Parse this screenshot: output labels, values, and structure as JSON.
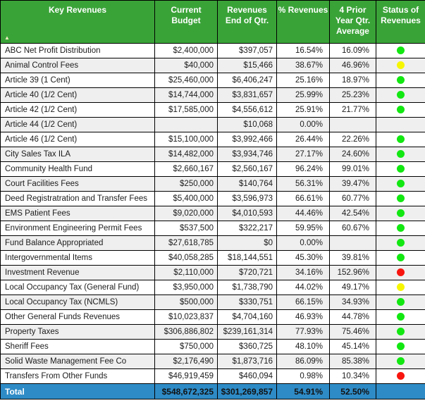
{
  "colors": {
    "header_bg": "#3AA338",
    "header_text": "#FFFFFF",
    "row_alt_bg": "#EFEFEF",
    "total_bg": "#2E8BC6",
    "grid_border": "#000000",
    "status_green": "#12E712",
    "status_yellow": "#F6F600",
    "status_red": "#F8150E"
  },
  "chart_data": {
    "type": "table",
    "sort_indicator": "ascending-on-key-revenues",
    "columns": [
      {
        "label": "Key Revenues",
        "align": "left"
      },
      {
        "label": "Current Budget",
        "align": "right"
      },
      {
        "label": "Revenues End of Qtr.",
        "align": "right"
      },
      {
        "label": "% Revenues",
        "align": "right"
      },
      {
        "label": "4 Prior Year Qtr. Average",
        "align": "right"
      },
      {
        "label": "Status of Revenues",
        "align": "center"
      }
    ],
    "rows": [
      {
        "name": "ABC Net Profit Distribution",
        "current_budget": "$2,400,000",
        "revenues_end_of_qtr": "$397,057",
        "pct_revenues": "16.54%",
        "prior_avg": "16.09%",
        "status": "green"
      },
      {
        "name": "Animal Control Fees",
        "current_budget": "$40,000",
        "revenues_end_of_qtr": "$15,466",
        "pct_revenues": "38.67%",
        "prior_avg": "46.96%",
        "status": "yellow"
      },
      {
        "name": "Article 39 (1 Cent)",
        "current_budget": "$25,460,000",
        "revenues_end_of_qtr": "$6,406,247",
        "pct_revenues": "25.16%",
        "prior_avg": "18.97%",
        "status": "green"
      },
      {
        "name": "Article 40 (1/2 Cent)",
        "current_budget": "$14,744,000",
        "revenues_end_of_qtr": "$3,831,657",
        "pct_revenues": "25.99%",
        "prior_avg": "25.23%",
        "status": "green"
      },
      {
        "name": "Article 42 (1/2 Cent)",
        "current_budget": "$17,585,000",
        "revenues_end_of_qtr": "$4,556,612",
        "pct_revenues": "25.91%",
        "prior_avg": "21.77%",
        "status": "green"
      },
      {
        "name": "Article 44 (1/2 Cent)",
        "current_budget": "",
        "revenues_end_of_qtr": "$10,068",
        "pct_revenues": "0.00%",
        "prior_avg": "",
        "status": "none"
      },
      {
        "name": "Article 46 (1/2 Cent)",
        "current_budget": "$15,100,000",
        "revenues_end_of_qtr": "$3,992,466",
        "pct_revenues": "26.44%",
        "prior_avg": "22.26%",
        "status": "green"
      },
      {
        "name": "City Sales Tax ILA",
        "current_budget": "$14,482,000",
        "revenues_end_of_qtr": "$3,934,746",
        "pct_revenues": "27.17%",
        "prior_avg": "24.60%",
        "status": "green"
      },
      {
        "name": "Community Health Fund",
        "current_budget": "$2,660,167",
        "revenues_end_of_qtr": "$2,560,167",
        "pct_revenues": "96.24%",
        "prior_avg": "99.01%",
        "status": "green"
      },
      {
        "name": "Court Facilities Fees",
        "current_budget": "$250,000",
        "revenues_end_of_qtr": "$140,764",
        "pct_revenues": "56.31%",
        "prior_avg": "39.47%",
        "status": "green"
      },
      {
        "name": "Deed Registratration and Transfer Fees",
        "current_budget": "$5,400,000",
        "revenues_end_of_qtr": "$3,596,973",
        "pct_revenues": "66.61%",
        "prior_avg": "60.77%",
        "status": "green"
      },
      {
        "name": "EMS Patient Fees",
        "current_budget": "$9,020,000",
        "revenues_end_of_qtr": "$4,010,593",
        "pct_revenues": "44.46%",
        "prior_avg": "42.54%",
        "status": "green"
      },
      {
        "name": "Environment Engineering Permit Fees",
        "current_budget": "$537,500",
        "revenues_end_of_qtr": "$322,217",
        "pct_revenues": "59.95%",
        "prior_avg": "60.67%",
        "status": "green"
      },
      {
        "name": "Fund Balance Appropriated",
        "current_budget": "$27,618,785",
        "revenues_end_of_qtr": "$0",
        "pct_revenues": "0.00%",
        "prior_avg": "",
        "status": "green"
      },
      {
        "name": "Intergovernmental Items",
        "current_budget": "$40,058,285",
        "revenues_end_of_qtr": "$18,144,551",
        "pct_revenues": "45.30%",
        "prior_avg": "39.81%",
        "status": "green"
      },
      {
        "name": "Investment Revenue",
        "current_budget": "$2,110,000",
        "revenues_end_of_qtr": "$720,721",
        "pct_revenues": "34.16%",
        "prior_avg": "152.96%",
        "status": "red"
      },
      {
        "name": "Local Occupancy Tax (General Fund)",
        "current_budget": "$3,950,000",
        "revenues_end_of_qtr": "$1,738,790",
        "pct_revenues": "44.02%",
        "prior_avg": "49.17%",
        "status": "yellow"
      },
      {
        "name": "Local Occupancy Tax (NCMLS)",
        "current_budget": "$500,000",
        "revenues_end_of_qtr": "$330,751",
        "pct_revenues": "66.15%",
        "prior_avg": "34.93%",
        "status": "green"
      },
      {
        "name": "Other General Funds Revenues",
        "current_budget": "$10,023,837",
        "revenues_end_of_qtr": "$4,704,160",
        "pct_revenues": "46.93%",
        "prior_avg": "44.78%",
        "status": "green"
      },
      {
        "name": "Property Taxes",
        "current_budget": "$306,886,802",
        "revenues_end_of_qtr": "$239,161,314",
        "pct_revenues": "77.93%",
        "prior_avg": "75.46%",
        "status": "green"
      },
      {
        "name": "Sheriff Fees",
        "current_budget": "$750,000",
        "revenues_end_of_qtr": "$360,725",
        "pct_revenues": "48.10%",
        "prior_avg": "45.14%",
        "status": "green"
      },
      {
        "name": "Solid Waste Management Fee Co",
        "current_budget": "$2,176,490",
        "revenues_end_of_qtr": "$1,873,716",
        "pct_revenues": "86.09%",
        "prior_avg": "85.38%",
        "status": "green"
      },
      {
        "name": "Transfers From Other Funds",
        "current_budget": "$46,919,459",
        "revenues_end_of_qtr": "$460,094",
        "pct_revenues": "0.98%",
        "prior_avg": "10.34%",
        "status": "red"
      }
    ],
    "total": {
      "label": "Total",
      "current_budget": "$548,672,325",
      "revenues_end_of_qtr": "$301,269,857",
      "pct_revenues": "54.91%",
      "prior_avg": "52.50%"
    }
  }
}
